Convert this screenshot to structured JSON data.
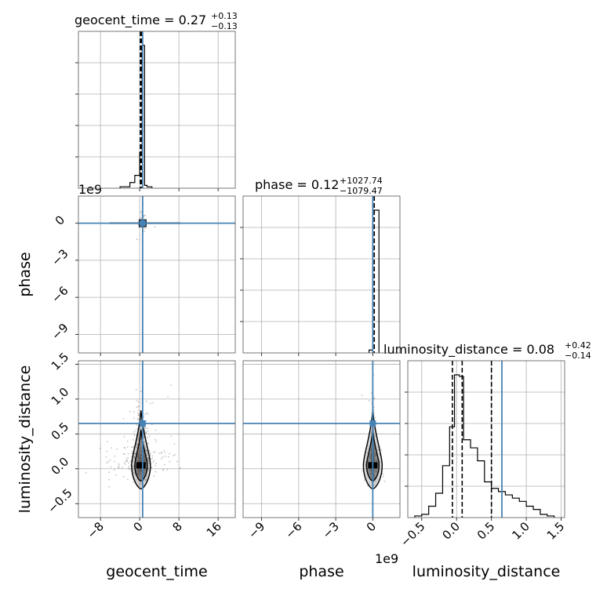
{
  "chart_data": {
    "type": "corner",
    "parameters": [
      "geocent_time",
      "phase",
      "luminosity_distance"
    ],
    "axis_labels": {
      "geocent_time": "geocent_time",
      "phase": "phase",
      "luminosity_distance": "luminosity_distance"
    },
    "truths": {
      "geocent_time": 0.6,
      "phase": 0.0,
      "luminosity_distance": 0.65
    },
    "truth_color": "#4682b4",
    "ranges": {
      "geocent_time": [
        -12.5,
        19.5
      ],
      "phase": [
        -10.5,
        2.2
      ],
      "luminosity_distance": [
        -0.7,
        1.55
      ]
    },
    "offset_text": {
      "phase": "1e9"
    },
    "ticks": {
      "geocent_time": {
        "values": [
          -8,
          0,
          8,
          16
        ],
        "labels": [
          "−8",
          "0",
          "8",
          "16"
        ]
      },
      "phase": {
        "values": [
          -9,
          -6,
          -3,
          0
        ],
        "labels": [
          "−9",
          "−6",
          "−3",
          "0"
        ]
      },
      "luminosity_distance": {
        "values": [
          -0.5,
          0.0,
          0.5,
          1.0,
          1.5
        ],
        "labels": [
          "−0.5",
          "0.0",
          "0.5",
          "1.0",
          "1.5"
        ]
      }
    },
    "titles": {
      "geocent_time": {
        "label": "geocent_time = ",
        "median": "0.27",
        "upper": "+0.13",
        "lower": "−0.13"
      },
      "phase": {
        "label": "phase = ",
        "median": "0.12",
        "upper": "+1027.74",
        "lower": "−1079.47"
      },
      "luminosity_distance": {
        "label": "luminosity_distance = ",
        "median": "0.08",
        "upper": "+0.42",
        "lower": "−0.14"
      }
    },
    "quantiles": {
      "geocent_time": [
        0.14,
        0.27,
        0.4
      ],
      "phase": [
        -1079.35,
        0.12,
        1027.86
      ],
      "luminosity_distance": [
        -0.06,
        0.08,
        0.5
      ]
    },
    "histograms": {
      "geocent_time": {
        "bin_edges": [
          -4.0,
          -2.0,
          -1.0,
          0.0,
          0.5,
          1.0,
          1.5,
          2.5
        ],
        "counts": [
          0.01,
          0.04,
          0.09,
          0.25,
          1.0,
          0.02,
          0.01
        ]
      },
      "phase": {
        "bin_edges": [
          -0.3,
          0.0,
          0.5
        ],
        "counts": [
          0.02,
          1.0
        ]
      },
      "luminosity_distance": {
        "bin_edges": [
          -0.6,
          -0.5,
          -0.4,
          -0.3,
          -0.2,
          -0.1,
          -0.03,
          0.04,
          0.1,
          0.2,
          0.3,
          0.4,
          0.5,
          0.6,
          0.7,
          0.8,
          0.9,
          1.0,
          1.1,
          1.2,
          1.3,
          1.4
        ],
        "counts": [
          0.01,
          0.02,
          0.07,
          0.15,
          0.32,
          0.56,
          0.88,
          0.87,
          0.48,
          0.43,
          0.35,
          0.22,
          0.18,
          0.16,
          0.14,
          0.12,
          0.1,
          0.07,
          0.05,
          0.02,
          0.01
        ]
      }
    }
  }
}
